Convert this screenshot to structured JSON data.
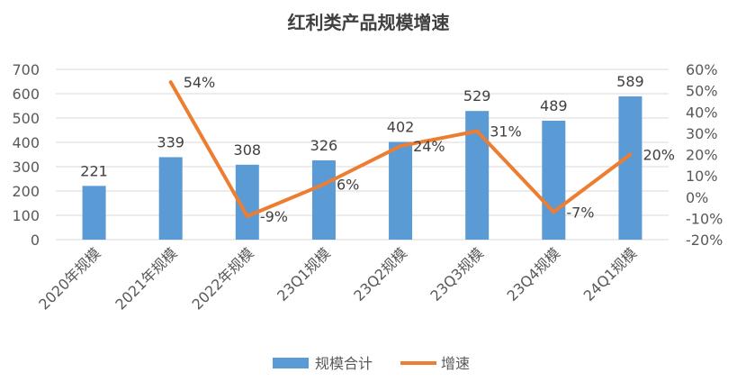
{
  "chart_data": {
    "type": "bar",
    "title": "红利类产品规模增速",
    "categories": [
      "2020年规模",
      "2021年规模",
      "2022年规模",
      "23Q1规模",
      "23Q2规模",
      "23Q3规模",
      "23Q4规模",
      "24Q1规模"
    ],
    "series": [
      {
        "name": "规模合计",
        "type": "bar",
        "axis": "left",
        "color": "#5b9bd5",
        "values": [
          221,
          339,
          308,
          326,
          402,
          529,
          489,
          589
        ],
        "labels": [
          "221",
          "339",
          "308",
          "326",
          "402",
          "529",
          "489",
          "589"
        ]
      },
      {
        "name": "增速",
        "type": "line",
        "axis": "right",
        "color": "#ed7d31",
        "values": [
          null,
          54,
          -9,
          6,
          24,
          31,
          -7,
          20
        ],
        "labels": [
          "",
          "54%",
          "-9%",
          "6%",
          "24%",
          "31%",
          "-7%",
          "20%"
        ]
      }
    ],
    "y_left": {
      "min": 0,
      "max": 700,
      "step": 100,
      "ticks": [
        "0",
        "100",
        "200",
        "300",
        "400",
        "500",
        "600",
        "700"
      ]
    },
    "y_right": {
      "min": -20,
      "max": 60,
      "step": 10,
      "ticks": [
        "-20%",
        "-10%",
        "0%",
        "10%",
        "20%",
        "30%",
        "40%",
        "50%",
        "60%"
      ]
    },
    "grid": true,
    "legend_position": "bottom"
  }
}
